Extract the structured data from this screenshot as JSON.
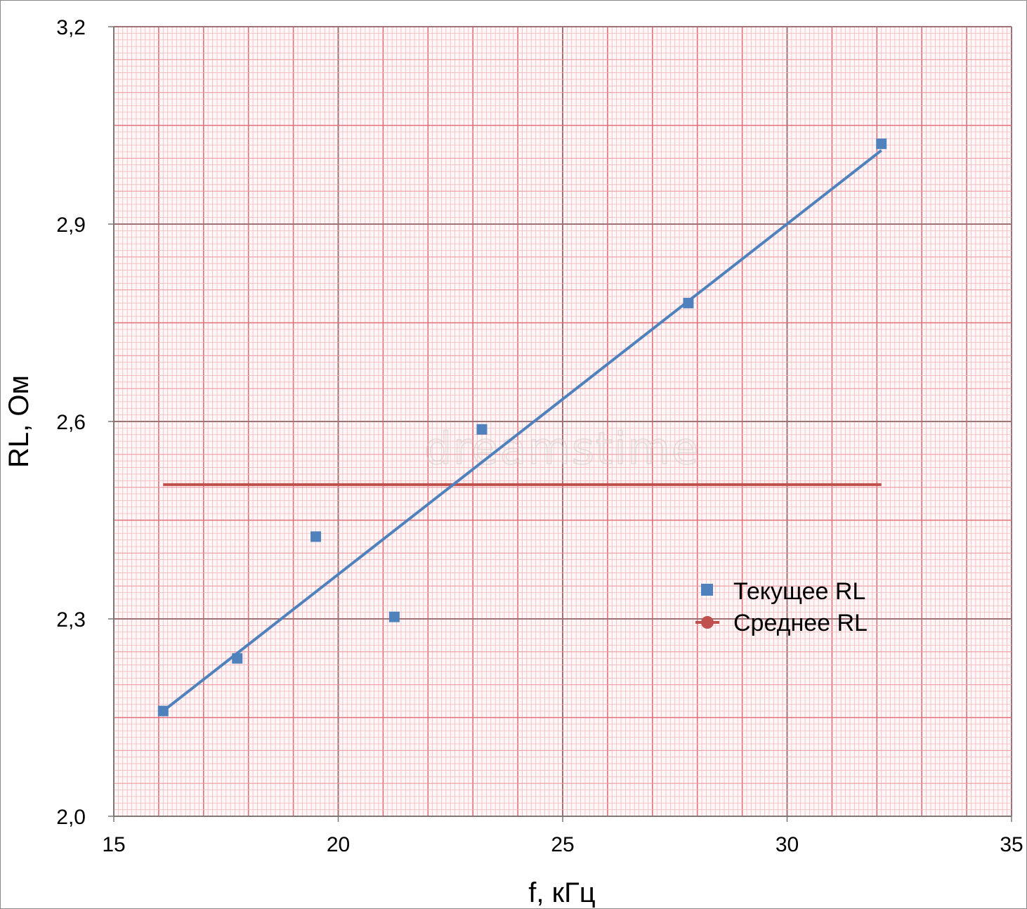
{
  "chart_data": {
    "type": "scatter",
    "xlabel": "f, кГц",
    "ylabel": "RL, Ом",
    "xlim": [
      15,
      35
    ],
    "ylim": [
      2.0,
      3.2
    ],
    "x_ticks": [
      15,
      20,
      25,
      30,
      35
    ],
    "x_tick_labels": [
      "15",
      "20",
      "25",
      "30",
      "35"
    ],
    "y_ticks": [
      2.0,
      2.3,
      2.6,
      2.9,
      3.2
    ],
    "y_tick_labels": [
      "2,0",
      "2,3",
      "2,6",
      "2,9",
      "3,2"
    ],
    "grid": "graph-paper",
    "legend_position": "center-right",
    "series": [
      {
        "name": "Текущее RL",
        "marker": "square",
        "color": "#4f81bd",
        "points": [
          {
            "x": 16.1,
            "y": 2.16
          },
          {
            "x": 17.75,
            "y": 2.24
          },
          {
            "x": 19.5,
            "y": 2.425
          },
          {
            "x": 21.25,
            "y": 2.303
          },
          {
            "x": 23.2,
            "y": 2.588
          },
          {
            "x": 27.8,
            "y": 2.78
          },
          {
            "x": 32.1,
            "y": 3.022
          }
        ],
        "trendline": {
          "x": [
            16.1,
            32.1
          ],
          "y": [
            2.16,
            3.012
          ],
          "color": "#4f81bd"
        }
      },
      {
        "name": "Среднее RL",
        "marker": "circle",
        "color": "#c0504d",
        "x": [
          16.1,
          32.1
        ],
        "y": [
          2.504,
          2.504
        ]
      }
    ]
  },
  "watermark": "dreamstime",
  "colors": {
    "grid_minor": "#f2b8bc",
    "grid_mid": "#e06f78",
    "grid_major": "#a07275",
    "series_blue": "#4f81bd",
    "series_red": "#c0504d"
  }
}
